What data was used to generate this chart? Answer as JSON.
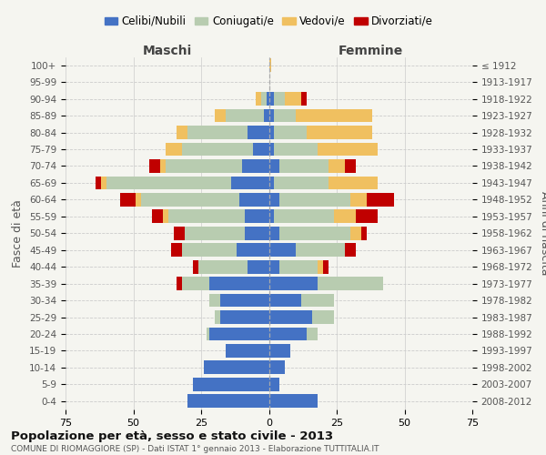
{
  "age_groups": [
    "0-4",
    "5-9",
    "10-14",
    "15-19",
    "20-24",
    "25-29",
    "30-34",
    "35-39",
    "40-44",
    "45-49",
    "50-54",
    "55-59",
    "60-64",
    "65-69",
    "70-74",
    "75-79",
    "80-84",
    "85-89",
    "90-94",
    "95-99",
    "100+"
  ],
  "birth_years": [
    "2008-2012",
    "2003-2007",
    "1998-2002",
    "1993-1997",
    "1988-1992",
    "1983-1987",
    "1978-1982",
    "1973-1977",
    "1968-1972",
    "1963-1967",
    "1958-1962",
    "1953-1957",
    "1948-1952",
    "1943-1947",
    "1938-1942",
    "1933-1937",
    "1928-1932",
    "1923-1927",
    "1918-1922",
    "1913-1917",
    "≤ 1912"
  ],
  "colors": {
    "celibe": "#4472C4",
    "coniugato": "#B8CCB0",
    "vedovo": "#F0C060",
    "divorziato": "#C00000"
  },
  "maschi": {
    "celibe": [
      30,
      28,
      24,
      16,
      22,
      18,
      18,
      22,
      8,
      12,
      9,
      9,
      11,
      14,
      10,
      6,
      8,
      2,
      1,
      0,
      0
    ],
    "coniugato": [
      0,
      0,
      0,
      0,
      1,
      2,
      4,
      10,
      18,
      20,
      22,
      28,
      36,
      46,
      28,
      26,
      22,
      14,
      2,
      0,
      0
    ],
    "vedovo": [
      0,
      0,
      0,
      0,
      0,
      0,
      0,
      0,
      0,
      0,
      0,
      2,
      2,
      2,
      2,
      6,
      4,
      4,
      2,
      0,
      0
    ],
    "divorziato": [
      0,
      0,
      0,
      0,
      0,
      0,
      0,
      2,
      2,
      4,
      4,
      4,
      6,
      2,
      4,
      0,
      0,
      0,
      0,
      0,
      0
    ]
  },
  "femmine": {
    "celibe": [
      18,
      4,
      6,
      8,
      14,
      16,
      12,
      18,
      4,
      10,
      4,
      2,
      4,
      2,
      4,
      2,
      2,
      2,
      2,
      0,
      0
    ],
    "coniugato": [
      0,
      0,
      0,
      0,
      4,
      8,
      12,
      24,
      14,
      18,
      26,
      22,
      26,
      20,
      18,
      16,
      12,
      8,
      4,
      0,
      0
    ],
    "vedovo": [
      0,
      0,
      0,
      0,
      0,
      0,
      0,
      0,
      2,
      0,
      4,
      8,
      6,
      18,
      6,
      22,
      24,
      28,
      6,
      0,
      1
    ],
    "divorziato": [
      0,
      0,
      0,
      0,
      0,
      0,
      0,
      0,
      2,
      4,
      2,
      8,
      10,
      0,
      4,
      0,
      0,
      0,
      2,
      0,
      0
    ]
  },
  "xlim": 75,
  "title": "Popolazione per età, sesso e stato civile - 2013",
  "subtitle": "COMUNE DI RIOMAGGIORE (SP) - Dati ISTAT 1° gennaio 2013 - Elaborazione TUTTITALIA.IT",
  "ylabel_left": "Fasce di età",
  "ylabel_right": "Anni di nascita",
  "xlabel_left": "Maschi",
  "xlabel_right": "Femmine",
  "bg_color": "#f5f5f0",
  "plot_bg": "#f5f5f0",
  "grid_color": "#cccccc",
  "legend_labels": [
    "Celibi/Nubili",
    "Coniugati/e",
    "Vedovi/e",
    "Divorziati/e"
  ]
}
